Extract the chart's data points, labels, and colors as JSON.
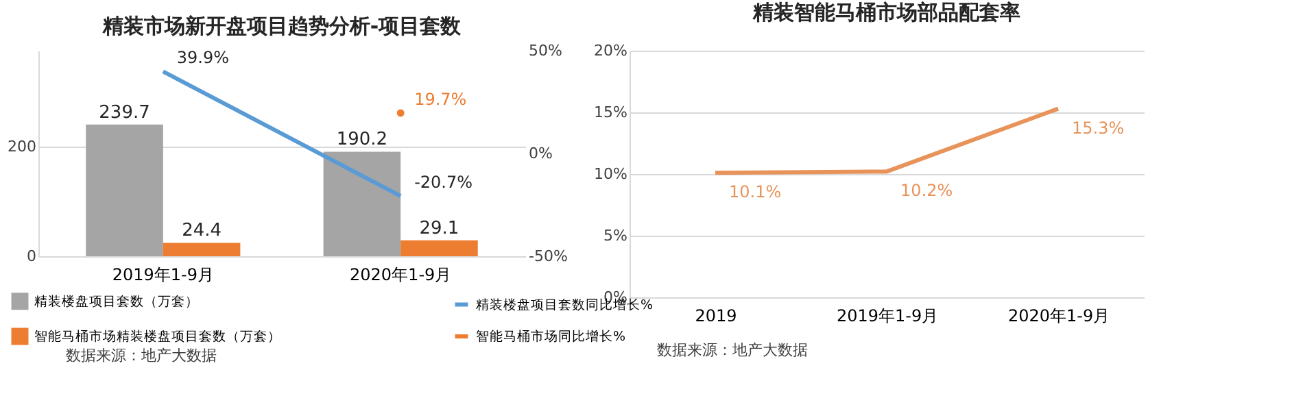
{
  "chart_data": [
    {
      "type": "bar",
      "title": "精装市场新开盘项目趋势分析-项目套数",
      "categories": [
        "2019年1-9月",
        "2020年1-9月"
      ],
      "series": [
        {
          "name": "精装楼盘项目套数（万套）",
          "color": "#a5a5a5",
          "values": [
            239.7,
            190.2
          ]
        },
        {
          "name": "智能马桶市场精装楼盘项目套数（万套）",
          "color": "#ed7d31",
          "values": [
            24.4,
            29.1
          ]
        },
        {
          "name": "精装楼盘项目套数同比增长%",
          "type": "line",
          "axis": "y2",
          "color": "#5b9bd5",
          "values": [
            39.9,
            -20.7
          ],
          "value_labels": [
            "39.9%",
            "-20.7%"
          ]
        },
        {
          "name": "智能马桶市场同比增长%",
          "type": "line",
          "axis": "y2",
          "color": "#ed7d31",
          "values": [
            null,
            19.7
          ],
          "marker": "circle",
          "value_labels": [
            null,
            "19.7%"
          ]
        }
      ],
      "ylim": [
        0,
        374
      ],
      "yticks": [
        0,
        200
      ],
      "y2lim": [
        -50,
        50
      ],
      "y2ticks": [
        {
          "value": -50,
          "label": "-50%"
        },
        {
          "value": 0,
          "label": "0%"
        },
        {
          "value": 50,
          "label": "50%"
        }
      ],
      "data_labels": true,
      "grid": "y",
      "legend": "bottom",
      "annotations": [
        "数据来源：地产大数据"
      ]
    },
    {
      "type": "line",
      "title": "精装智能马桶市场部品配套率",
      "categories": [
        "2019",
        "2019年1-9月",
        "2020年1-9月"
      ],
      "series": [
        {
          "color": "#e8935a",
          "values": [
            10.1,
            10.2,
            15.3
          ],
          "value_labels": [
            "10.1%",
            "10.2%",
            "15.3%"
          ]
        }
      ],
      "ylim": [
        0,
        20
      ],
      "yticks": [
        {
          "value": 0,
          "label": "0%"
        },
        {
          "value": 5,
          "label": "5%"
        },
        {
          "value": 10,
          "label": "10%"
        },
        {
          "value": 15,
          "label": "15%"
        },
        {
          "value": 20,
          "label": "20%"
        }
      ],
      "grid": "y",
      "annotations": [
        "数据来源：地产大数据"
      ]
    }
  ]
}
